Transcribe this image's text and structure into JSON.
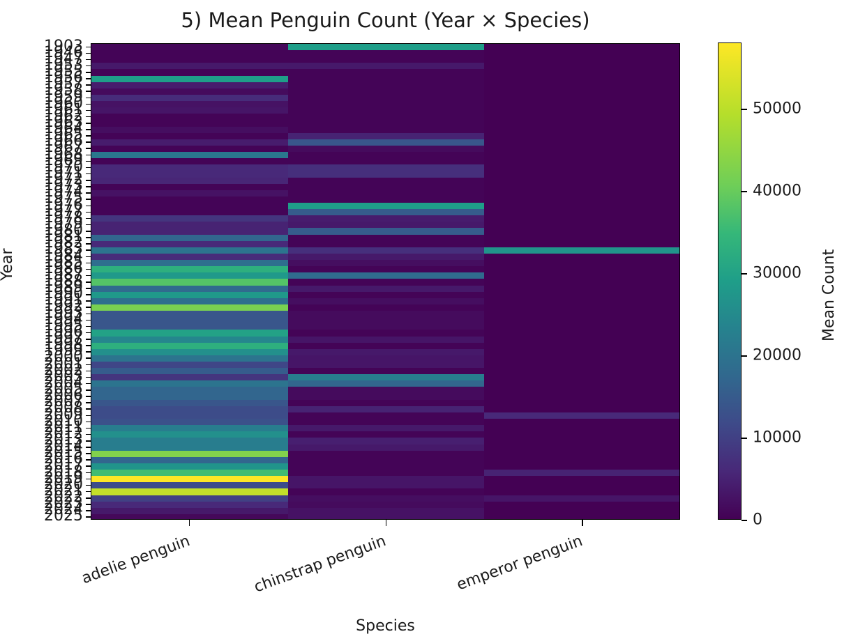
{
  "chart_data": {
    "type": "heatmap",
    "title": "5) Mean Penguin Count (Year × Species)",
    "xlabel": "Species",
    "ylabel": "Year",
    "colorbar_label": "Mean Count",
    "colormap": "viridis",
    "vmin": 0,
    "vmax": 58000,
    "colorbar_ticks": [
      0,
      10000,
      20000,
      30000,
      40000,
      50000
    ],
    "columns": [
      "adelie penguin",
      "chinstrap penguin",
      "emperor penguin"
    ],
    "rows": [
      1903,
      1946,
      1947,
      1953,
      1955,
      1956,
      1957,
      1958,
      1959,
      1960,
      1961,
      1962,
      1963,
      1964,
      1965,
      1966,
      1967,
      1968,
      1969,
      1970,
      1971,
      1972,
      1973,
      1974,
      1975,
      1976,
      1977,
      1978,
      1979,
      1980,
      1981,
      1982,
      1983,
      1984,
      1985,
      1986,
      1987,
      1988,
      1989,
      1990,
      1991,
      1992,
      1993,
      1994,
      1995,
      1996,
      1997,
      1998,
      1999,
      2000,
      2001,
      2002,
      2003,
      2004,
      2005,
      2006,
      2007,
      2008,
      2009,
      2010,
      2011,
      2012,
      2013,
      2014,
      2015,
      2016,
      2017,
      2018,
      2019,
      2020,
      2021,
      2022,
      2023,
      2024,
      2025
    ],
    "values": [
      [
        1000,
        29000,
        0
      ],
      [
        500,
        500,
        0
      ],
      [
        500,
        500,
        0
      ],
      [
        3500,
        3500,
        0
      ],
      [
        500,
        500,
        0
      ],
      [
        29000,
        500,
        0
      ],
      [
        4000,
        500,
        0
      ],
      [
        1500,
        500,
        0
      ],
      [
        6500,
        500,
        0
      ],
      [
        2500,
        500,
        0
      ],
      [
        3000,
        500,
        0
      ],
      [
        500,
        500,
        0
      ],
      [
        500,
        500,
        0
      ],
      [
        2000,
        500,
        0
      ],
      [
        500,
        5000,
        0
      ],
      [
        4000,
        14000,
        0
      ],
      [
        500,
        1500,
        0
      ],
      [
        21000,
        500,
        0
      ],
      [
        500,
        500,
        0
      ],
      [
        6000,
        7000,
        0
      ],
      [
        6000,
        7000,
        0
      ],
      [
        5500,
        500,
        0
      ],
      [
        500,
        500,
        0
      ],
      [
        2500,
        500,
        0
      ],
      [
        500,
        500,
        0
      ],
      [
        500,
        29000,
        0
      ],
      [
        500,
        15000,
        0
      ],
      [
        8000,
        4000,
        0
      ],
      [
        5000,
        3500,
        0
      ],
      [
        5000,
        15000,
        0
      ],
      [
        17000,
        500,
        0
      ],
      [
        6000,
        500,
        0
      ],
      [
        20000,
        7000,
        27000
      ],
      [
        6500,
        3500,
        0
      ],
      [
        19000,
        2000,
        0
      ],
      [
        33000,
        500,
        0
      ],
      [
        28000,
        18000,
        0
      ],
      [
        38000,
        500,
        0
      ],
      [
        18000,
        3500,
        0
      ],
      [
        28000,
        500,
        0
      ],
      [
        19000,
        2000,
        0
      ],
      [
        42000,
        500,
        0
      ],
      [
        14000,
        1500,
        0
      ],
      [
        14000,
        1500,
        0
      ],
      [
        14000,
        1500,
        0
      ],
      [
        30000,
        500,
        0
      ],
      [
        24000,
        3000,
        0
      ],
      [
        33000,
        500,
        0
      ],
      [
        26000,
        3500,
        0
      ],
      [
        20000,
        3000,
        0
      ],
      [
        11000,
        3000,
        0
      ],
      [
        15000,
        500,
        0
      ],
      [
        8000,
        22000,
        0
      ],
      [
        20000,
        17000,
        0
      ],
      [
        17000,
        1500,
        0
      ],
      [
        17000,
        1500,
        0
      ],
      [
        14000,
        500,
        0
      ],
      [
        12000,
        5000,
        0
      ],
      [
        12000,
        500,
        6000
      ],
      [
        13000,
        500,
        0
      ],
      [
        22000,
        3500,
        0
      ],
      [
        26000,
        500,
        0
      ],
      [
        22000,
        4500,
        0
      ],
      [
        22000,
        3500,
        0
      ],
      [
        43000,
        500,
        0
      ],
      [
        17000,
        500,
        0
      ],
      [
        27000,
        500,
        0
      ],
      [
        36000,
        500,
        5000
      ],
      [
        58000,
        3000,
        0
      ],
      [
        12000,
        3000,
        0
      ],
      [
        51000,
        500,
        0
      ],
      [
        10000,
        2000,
        3000
      ],
      [
        6000,
        1500,
        0
      ],
      [
        3500,
        2500,
        0
      ],
      [
        1000,
        2500,
        0
      ]
    ]
  }
}
